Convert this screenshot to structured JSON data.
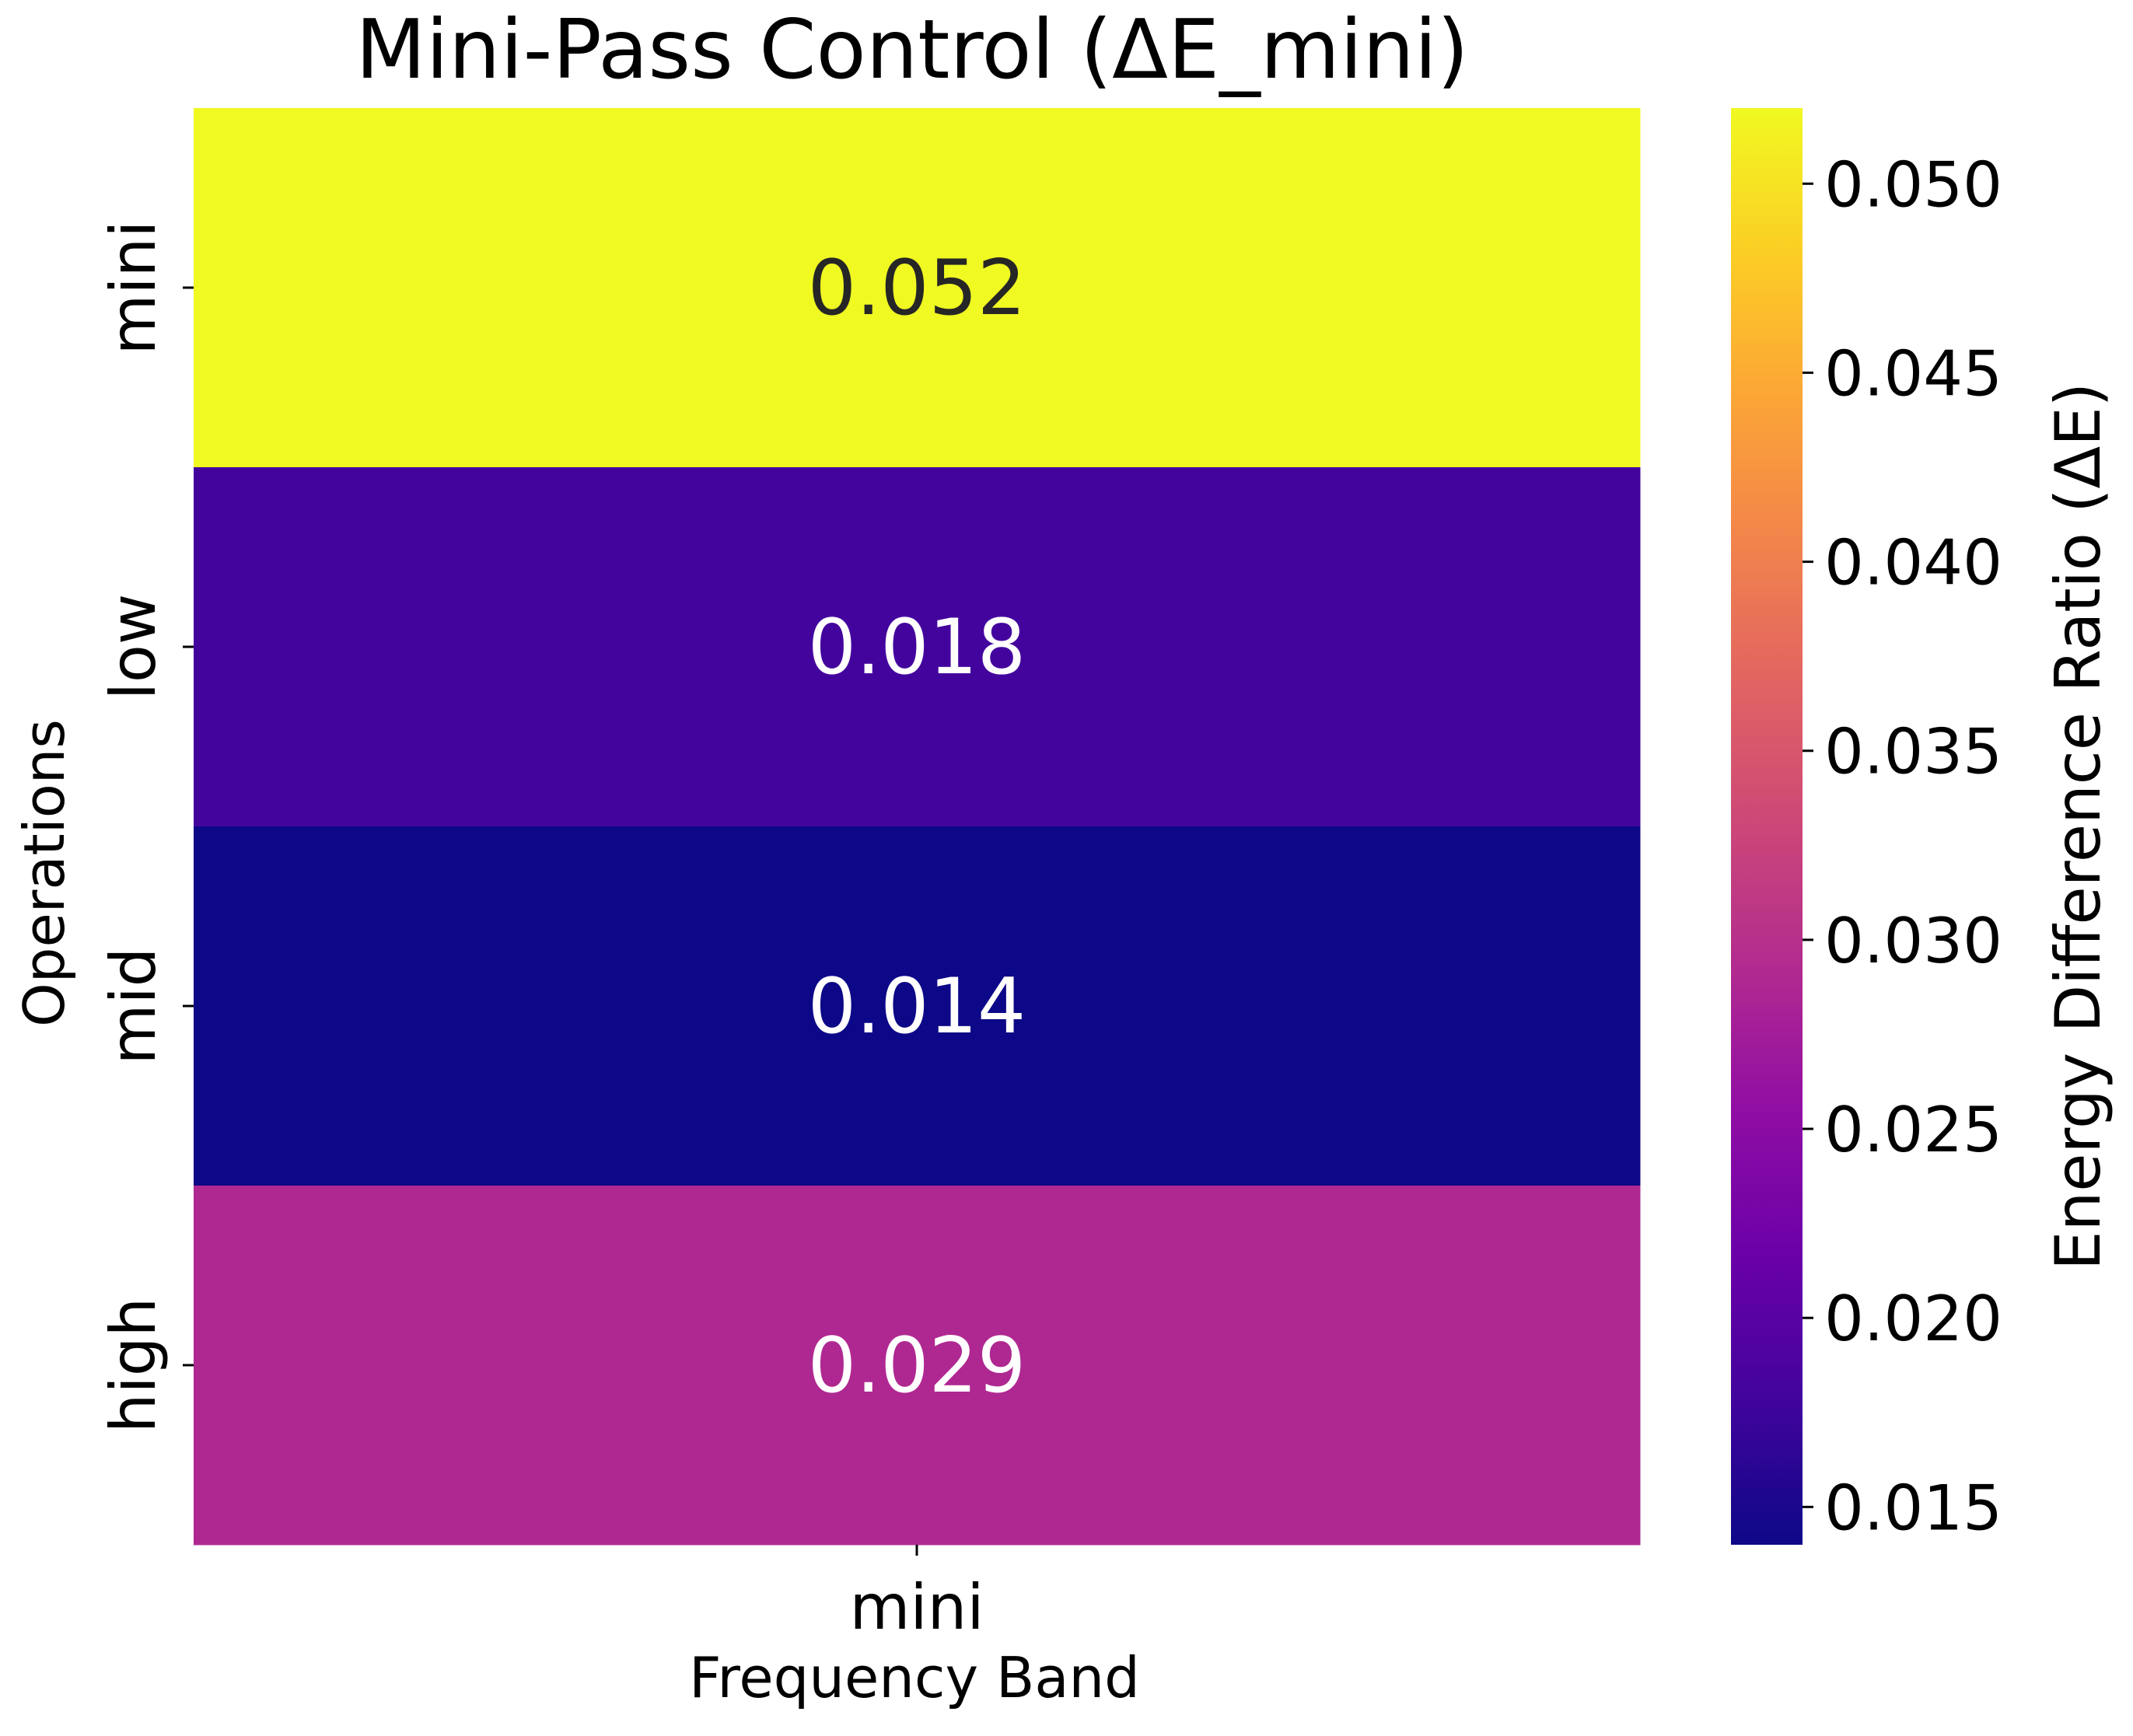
{
  "chart_data": {
    "type": "heatmap",
    "title": "Mini-Pass Control (ΔE_mini)",
    "xlabel": "Frequency Band",
    "ylabel": "Operations",
    "x_categories": [
      "mini"
    ],
    "y_categories": [
      "mini",
      "low",
      "mid",
      "high"
    ],
    "values": [
      [
        0.052
      ],
      [
        0.018
      ],
      [
        0.014
      ],
      [
        0.029
      ]
    ],
    "value_labels": [
      "0.052",
      "0.018",
      "0.014",
      "0.029"
    ],
    "colorbar": {
      "label": "Energy Difference Ratio (ΔE)",
      "min": 0.014,
      "max": 0.052,
      "ticks": [
        0.015,
        0.02,
        0.025,
        0.03,
        0.035,
        0.04,
        0.045,
        0.05
      ],
      "tick_labels": [
        "0.015",
        "0.020",
        "0.025",
        "0.030",
        "0.035",
        "0.040",
        "0.045",
        "0.050"
      ],
      "colormap": "plasma"
    },
    "annotation_colors": {
      "dark": "#262626",
      "light": "#ffffff"
    }
  }
}
